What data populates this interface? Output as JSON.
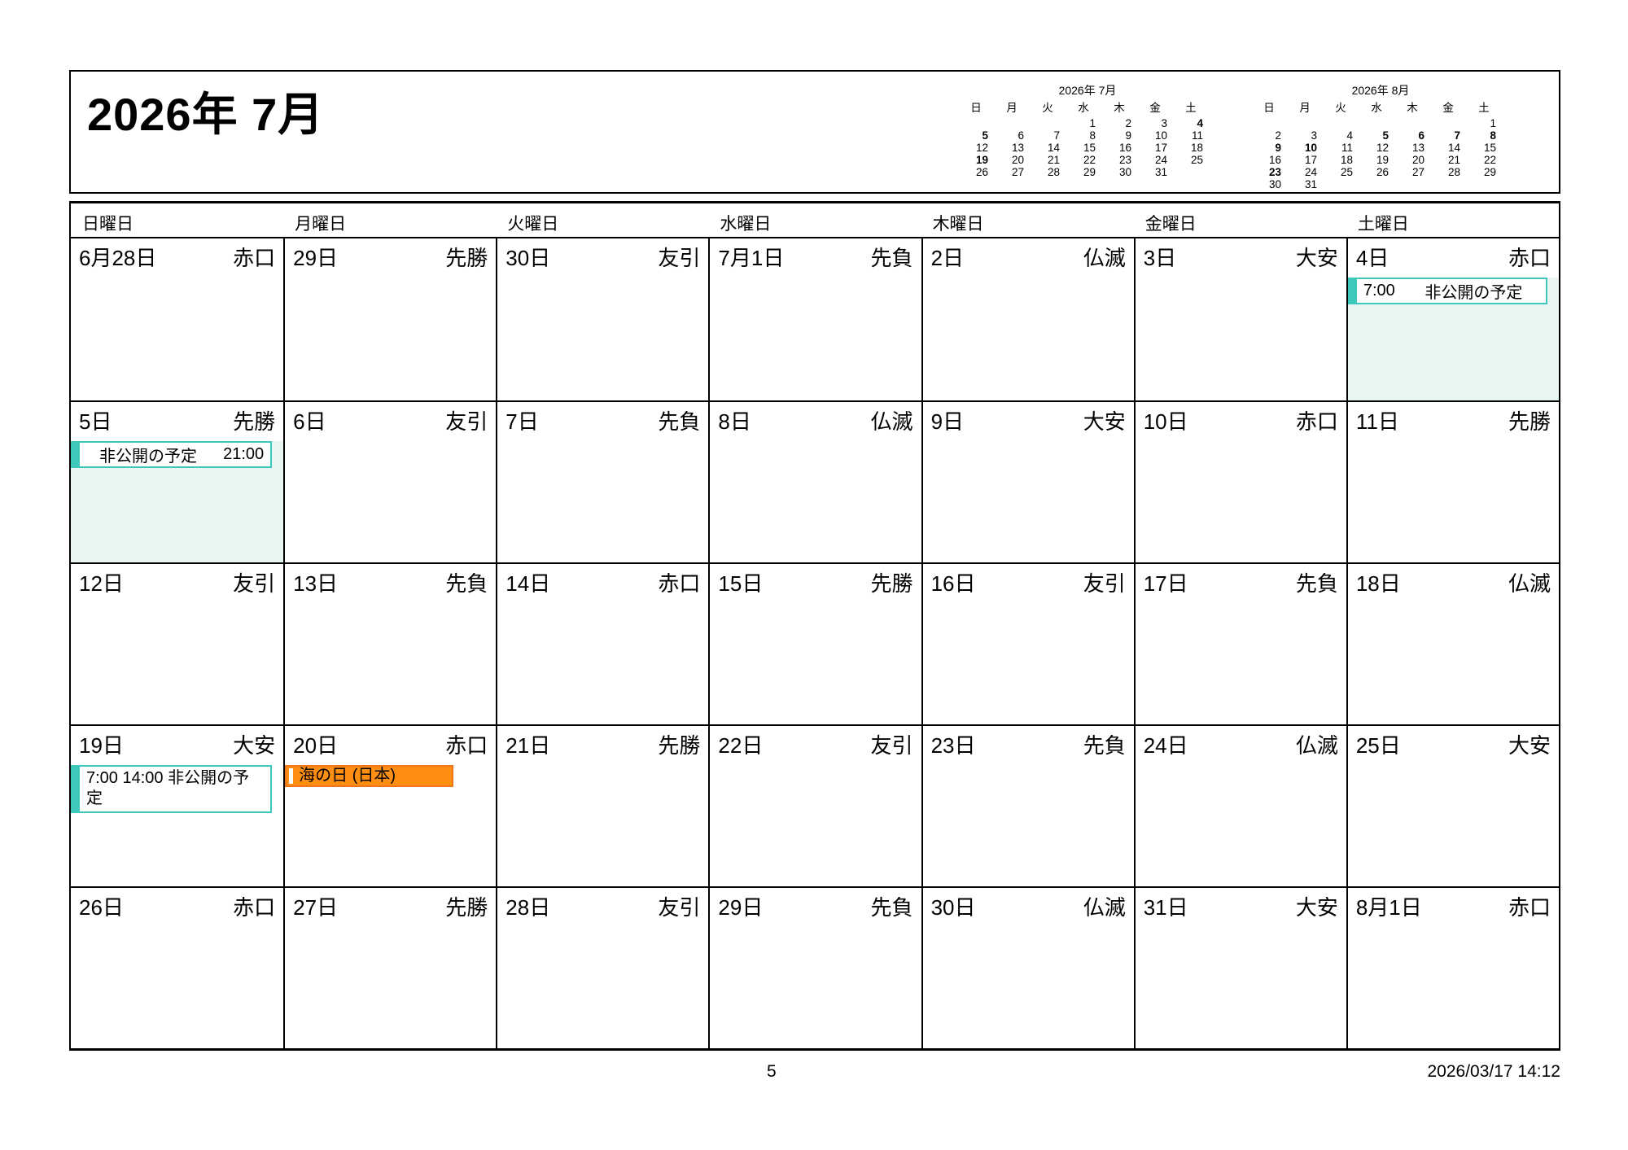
{
  "page": {
    "title": "2026年 7月",
    "footer_page_number": "5",
    "footer_timestamp": "2026/03/17 14:12"
  },
  "colors": {
    "teal": "#3EC7BB",
    "teal_light": "#E7F6F3",
    "orange": "#FF8E12",
    "orange_border": "#F0761A",
    "border": "#000000"
  },
  "mini_calendars": [
    {
      "title": "2026年 7月",
      "day_headers": [
        "日",
        "月",
        "火",
        "水",
        "木",
        "金",
        "土"
      ],
      "weeks": [
        [
          "",
          "",
          "",
          "1",
          "2",
          "3",
          "4"
        ],
        [
          "5",
          "6",
          "7",
          "8",
          "9",
          "10",
          "11"
        ],
        [
          "12",
          "13",
          "14",
          "15",
          "16",
          "17",
          "18"
        ],
        [
          "19",
          "20",
          "21",
          "22",
          "23",
          "24",
          "25"
        ],
        [
          "26",
          "27",
          "28",
          "29",
          "30",
          "31",
          ""
        ]
      ],
      "bold_days": [
        "4",
        "5",
        "19"
      ]
    },
    {
      "title": "2026年 8月",
      "day_headers": [
        "日",
        "月",
        "火",
        "水",
        "木",
        "金",
        "土"
      ],
      "weeks": [
        [
          "",
          "",
          "",
          "",
          "",
          "",
          "1"
        ],
        [
          "2",
          "3",
          "4",
          "5",
          "6",
          "7",
          "8"
        ],
        [
          "9",
          "10",
          "11",
          "12",
          "13",
          "14",
          "15"
        ],
        [
          "16",
          "17",
          "18",
          "19",
          "20",
          "21",
          "22"
        ],
        [
          "23",
          "24",
          "25",
          "26",
          "27",
          "28",
          "29"
        ],
        [
          "30",
          "31",
          "",
          "",
          "",
          "",
          ""
        ]
      ],
      "bold_days": [
        "5",
        "6",
        "7",
        "8",
        "9",
        "10",
        "23"
      ]
    }
  ],
  "calendar": {
    "day_headers": [
      "日曜日",
      "月曜日",
      "火曜日",
      "水曜日",
      "木曜日",
      "金曜日",
      "土曜日"
    ],
    "weeks": [
      [
        {
          "date": "6月28日",
          "rokuyo": "赤口"
        },
        {
          "date": "29日",
          "rokuyo": "先勝"
        },
        {
          "date": "30日",
          "rokuyo": "友引"
        },
        {
          "date": "7月1日",
          "rokuyo": "先負"
        },
        {
          "date": "2日",
          "rokuyo": "仏滅"
        },
        {
          "date": "3日",
          "rokuyo": "大安"
        },
        {
          "date": "4日",
          "rokuyo": "赤口",
          "shaded": true,
          "events": [
            {
              "style": "teal",
              "layout": "time-title",
              "time": "7:00",
              "title": "非公開の予定"
            }
          ]
        }
      ],
      [
        {
          "date": "5日",
          "rokuyo": "先勝",
          "shaded": true,
          "events": [
            {
              "style": "teal",
              "layout": "title-time",
              "time": "21:00",
              "title": "非公開の予定"
            }
          ]
        },
        {
          "date": "6日",
          "rokuyo": "友引"
        },
        {
          "date": "7日",
          "rokuyo": "先負"
        },
        {
          "date": "8日",
          "rokuyo": "仏滅"
        },
        {
          "date": "9日",
          "rokuyo": "大安"
        },
        {
          "date": "10日",
          "rokuyo": "赤口"
        },
        {
          "date": "11日",
          "rokuyo": "先勝"
        }
      ],
      [
        {
          "date": "12日",
          "rokuyo": "友引"
        },
        {
          "date": "13日",
          "rokuyo": "先負"
        },
        {
          "date": "14日",
          "rokuyo": "赤口"
        },
        {
          "date": "15日",
          "rokuyo": "先勝"
        },
        {
          "date": "16日",
          "rokuyo": "友引"
        },
        {
          "date": "17日",
          "rokuyo": "先負"
        },
        {
          "date": "18日",
          "rokuyo": "仏滅"
        }
      ],
      [
        {
          "date": "19日",
          "rokuyo": "大安",
          "events": [
            {
              "style": "teal",
              "layout": "wrap",
              "title": "7:00 14:00 非公開の予定"
            }
          ]
        },
        {
          "date": "20日",
          "rokuyo": "赤口",
          "events": [
            {
              "style": "orange",
              "layout": "holiday",
              "title": "海の日 (日本)"
            }
          ]
        },
        {
          "date": "21日",
          "rokuyo": "先勝"
        },
        {
          "date": "22日",
          "rokuyo": "友引"
        },
        {
          "date": "23日",
          "rokuyo": "先負"
        },
        {
          "date": "24日",
          "rokuyo": "仏滅"
        },
        {
          "date": "25日",
          "rokuyo": "大安"
        }
      ],
      [
        {
          "date": "26日",
          "rokuyo": "赤口"
        },
        {
          "date": "27日",
          "rokuyo": "先勝"
        },
        {
          "date": "28日",
          "rokuyo": "友引"
        },
        {
          "date": "29日",
          "rokuyo": "先負"
        },
        {
          "date": "30日",
          "rokuyo": "仏滅"
        },
        {
          "date": "31日",
          "rokuyo": "大安"
        },
        {
          "date": "8月1日",
          "rokuyo": "赤口"
        }
      ]
    ]
  }
}
